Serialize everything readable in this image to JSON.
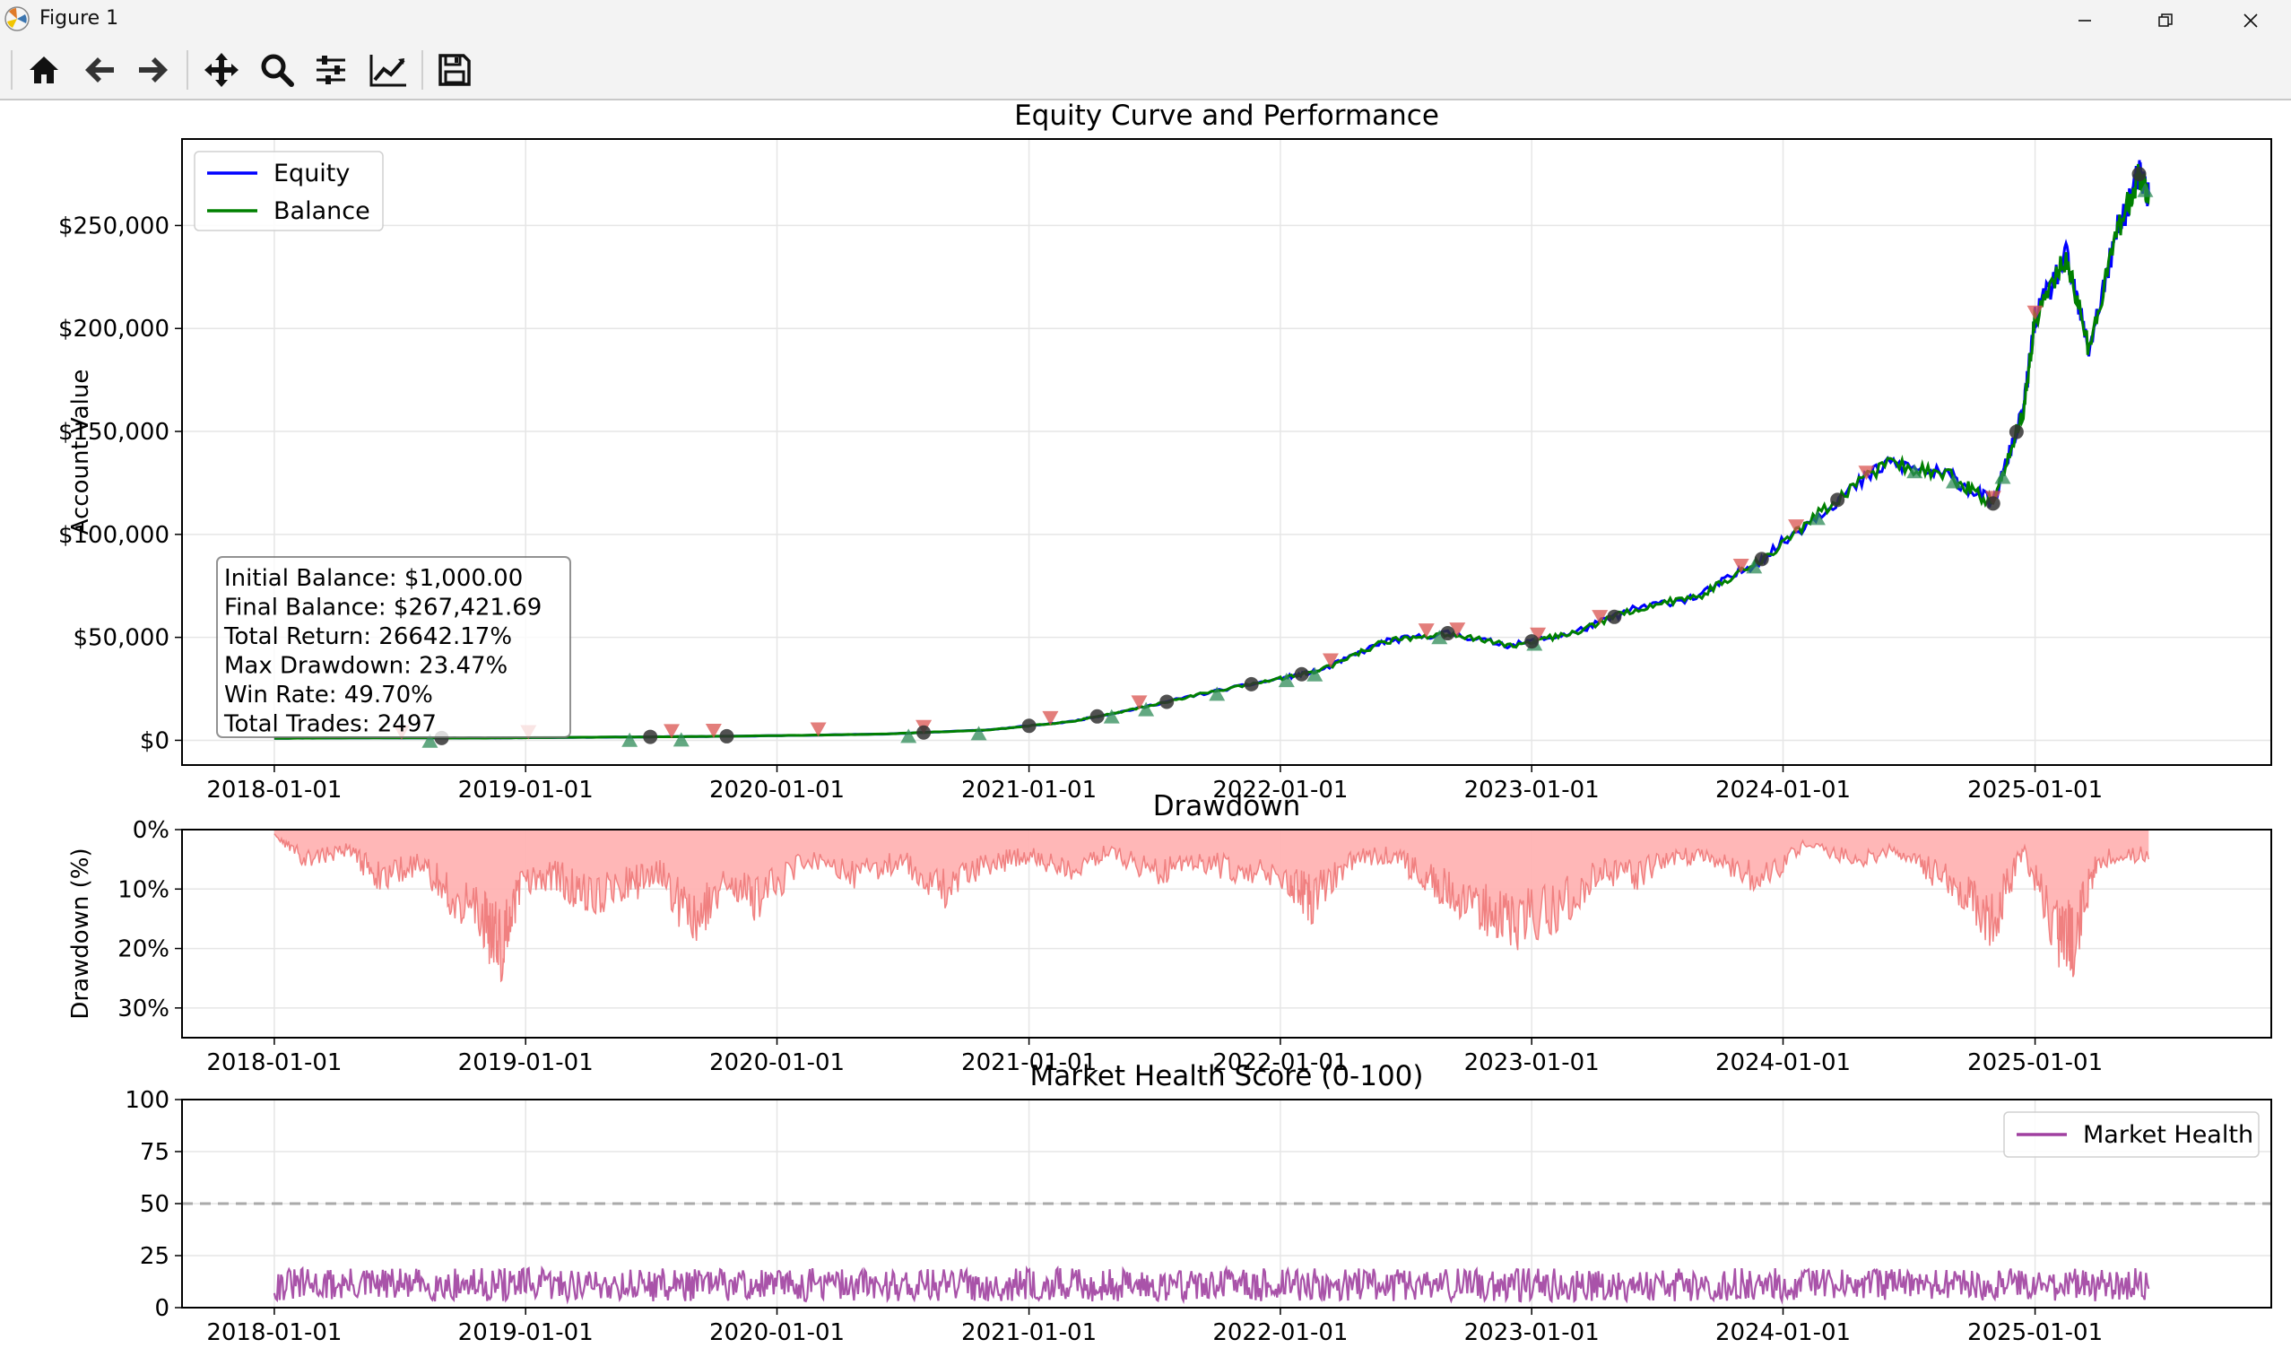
{
  "window": {
    "title": "Figure 1",
    "minimize_label": "minimize",
    "maximize_label": "restore",
    "close_label": "close"
  },
  "toolbar": {
    "buttons": [
      "home",
      "back",
      "forward",
      "pan",
      "zoom",
      "configure-subplots",
      "edit-axis",
      "save"
    ]
  },
  "colors": {
    "equity": "#0000ff",
    "balance": "#008000",
    "drawdown_fill": "#ffb3b3",
    "drawdown_line": "#f08080",
    "market_health": "#a040a0",
    "buy_marker": "#2e8b57",
    "sell_marker": "#d9534f",
    "exit_marker": "#333333",
    "grid": "#e6e6e6",
    "reference_line": "#aaaaaa"
  },
  "chart_data": [
    {
      "type": "line",
      "title": "Equity Curve and Performance",
      "xlabel": "",
      "ylabel": "Account Value",
      "x_ticks": [
        "2018-01-01",
        "2019-01-01",
        "2020-01-01",
        "2021-01-01",
        "2022-01-01",
        "2023-01-01",
        "2024-01-01",
        "2025-01-01"
      ],
      "y_ticks": [
        "$0",
        "$50,000",
        "$100,000",
        "$150,000",
        "$200,000",
        "$250,000"
      ],
      "xlim": [
        "2017-08-20",
        "2025-12-10"
      ],
      "ylim": [
        -12000,
        292000
      ],
      "grid": true,
      "legend_position": "top-left",
      "series": [
        {
          "name": "Equity",
          "x": [
            "2018-01-01",
            "2018-06-01",
            "2018-11-01",
            "2019-01-01",
            "2019-06-01",
            "2019-11-01",
            "2020-06-01",
            "2020-11-01",
            "2021-03-01",
            "2021-06-01",
            "2021-09-01",
            "2022-01-01",
            "2022-03-01",
            "2022-06-01",
            "2022-09-01",
            "2022-12-01",
            "2023-03-01",
            "2023-06-01",
            "2023-09-01",
            "2023-12-01",
            "2024-03-01",
            "2024-06-01",
            "2024-09-01",
            "2024-11-01",
            "2024-12-15",
            "2025-01-01",
            "2025-02-15",
            "2025-03-20",
            "2025-05-01",
            "2025-06-01",
            "2025-06-15"
          ],
          "values": [
            1000,
            1200,
            1100,
            1300,
            1600,
            2000,
            3000,
            5000,
            9000,
            15000,
            22000,
            30000,
            34000,
            48000,
            52000,
            46000,
            52000,
            64000,
            70000,
            88000,
            112000,
            135000,
            128000,
            115000,
            160000,
            205000,
            235000,
            190000,
            248000,
            275000,
            265000
          ]
        },
        {
          "name": "Balance",
          "x": [
            "2018-01-01",
            "2018-06-01",
            "2018-11-01",
            "2019-01-01",
            "2019-06-01",
            "2019-11-01",
            "2020-06-01",
            "2020-11-01",
            "2021-03-01",
            "2021-06-01",
            "2021-09-01",
            "2022-01-01",
            "2022-03-01",
            "2022-06-01",
            "2022-09-01",
            "2022-12-01",
            "2023-03-01",
            "2023-06-01",
            "2023-09-01",
            "2023-12-01",
            "2024-03-01",
            "2024-06-01",
            "2024-09-01",
            "2024-11-01",
            "2024-12-15",
            "2025-01-01",
            "2025-02-15",
            "2025-03-20",
            "2025-05-01",
            "2025-06-01",
            "2025-06-15"
          ],
          "values": [
            1000,
            1200,
            1100,
            1300,
            1600,
            2000,
            3000,
            5000,
            9000,
            15000,
            22000,
            30000,
            34000,
            48000,
            52000,
            46000,
            52000,
            64000,
            70000,
            88000,
            112000,
            135000,
            128000,
            115000,
            160000,
            205000,
            235000,
            190000,
            248000,
            275000,
            265000
          ]
        }
      ],
      "trade_markers": {
        "buy": [
          "2018-08-15",
          "2019-06-01",
          "2019-08-15",
          "2020-07-10",
          "2020-10-20",
          "2021-05-01",
          "2021-06-20",
          "2021-10-01",
          "2022-01-10",
          "2022-02-20",
          "2022-08-20",
          "2023-01-05",
          "2023-11-20",
          "2024-02-20",
          "2024-07-10",
          "2024-09-05",
          "2024-11-15",
          "2025-06-10"
        ],
        "sell": [
          "2018-07-05",
          "2019-01-05",
          "2019-08-01",
          "2019-10-01",
          "2020-03-01",
          "2020-08-01",
          "2021-02-01",
          "2021-06-10",
          "2022-03-15",
          "2022-08-01",
          "2022-09-15",
          "2023-01-10",
          "2023-04-10",
          "2023-11-01",
          "2024-01-20",
          "2024-05-01",
          "2024-11-01",
          "2025-01-01"
        ],
        "exit": [
          "2018-09-01",
          "2019-07-01",
          "2019-10-20",
          "2020-08-01",
          "2021-01-01",
          "2021-04-10",
          "2021-07-20",
          "2021-11-20",
          "2022-02-01",
          "2022-09-01",
          "2023-01-01",
          "2023-05-01",
          "2023-12-01",
          "2024-03-20",
          "2024-11-01",
          "2024-12-05",
          "2025-06-01"
        ]
      },
      "annotation": [
        "Initial Balance: $1,000.00",
        "Final Balance: $267,421.69",
        "Total Return: 26642.17%",
        "Max Drawdown: 23.47%",
        "Win Rate: 49.70%",
        "Total Trades: 2497"
      ]
    },
    {
      "type": "area",
      "title": "Drawdown",
      "xlabel": "",
      "ylabel": "Drawdown (%)",
      "x_ticks": [
        "2018-01-01",
        "2019-01-01",
        "2020-01-01",
        "2021-01-01",
        "2022-01-01",
        "2023-01-01",
        "2024-01-01",
        "2025-01-01"
      ],
      "y_ticks": [
        "0%",
        "10%",
        "20%",
        "30%"
      ],
      "xlim": [
        "2017-08-20",
        "2025-12-10"
      ],
      "ylim": [
        35,
        0
      ],
      "grid": true,
      "series": [
        {
          "x": [
            "2018-01-01",
            "2018-02-15",
            "2018-04-15",
            "2018-06-01",
            "2018-08-01",
            "2018-09-15",
            "2018-11-01",
            "2018-11-25",
            "2018-12-25",
            "2019-02-15",
            "2019-04-01",
            "2019-06-01",
            "2019-07-15",
            "2019-09-01",
            "2019-10-15",
            "2019-12-01",
            "2020-02-15",
            "2020-05-01",
            "2020-07-01",
            "2020-09-01",
            "2020-11-01",
            "2021-01-01",
            "2021-03-01",
            "2021-05-01",
            "2021-07-01",
            "2021-09-01",
            "2021-11-01",
            "2022-01-15",
            "2022-02-15",
            "2022-04-15",
            "2022-06-15",
            "2022-08-01",
            "2022-09-15",
            "2022-11-01",
            "2022-12-15",
            "2023-02-15",
            "2023-04-15",
            "2023-06-01",
            "2023-08-01",
            "2023-10-01",
            "2023-12-01",
            "2024-02-01",
            "2024-04-15",
            "2024-06-15",
            "2024-08-01",
            "2024-09-20",
            "2024-11-01",
            "2024-12-15",
            "2025-02-01",
            "2025-02-25",
            "2025-04-01",
            "2025-06-15"
          ],
          "values": [
            1,
            6,
            4,
            9,
            7,
            13,
            18,
            23,
            12,
            9,
            14,
            11,
            8,
            20,
            10,
            14,
            6,
            9,
            6,
            12,
            7,
            5,
            8,
            4,
            9,
            6,
            8,
            10,
            14,
            6,
            5,
            10,
            13,
            16,
            18,
            15,
            8,
            9,
            5,
            6,
            10,
            3,
            6,
            4,
            8,
            13,
            18,
            4,
            20,
            22,
            6,
            5
          ]
        }
      ]
    },
    {
      "type": "line",
      "title": "Market Health Score (0-100)",
      "xlabel": "",
      "ylabel": "",
      "x_ticks": [
        "2018-01-01",
        "2019-01-01",
        "2020-01-01",
        "2021-01-01",
        "2022-01-01",
        "2023-01-01",
        "2024-01-01",
        "2025-01-01"
      ],
      "y_ticks": [
        "0",
        "25",
        "50",
        "75",
        "100"
      ],
      "xlim": [
        "2017-08-20",
        "2025-12-10"
      ],
      "ylim": [
        0,
        100
      ],
      "grid": true,
      "legend_position": "top-right",
      "reference_line": 50,
      "series": [
        {
          "name": "Market Health",
          "band_min": 3,
          "band_max": 19,
          "x_start": "2018-01-01",
          "x_end": "2025-06-15"
        }
      ]
    }
  ]
}
